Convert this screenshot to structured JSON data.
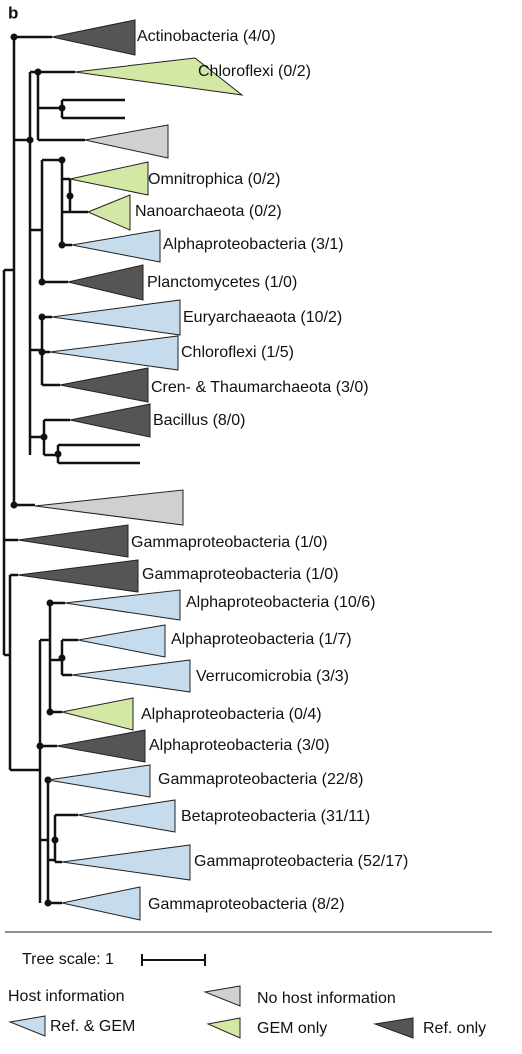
{
  "panel_label": "b",
  "clades": [
    "Actinobacteria (4/0)",
    "Chloroflexi (0/2)",
    "Omnitrophica (0/2)",
    "Nanoarchaeota (0/2)",
    "Alphaproteobacteria (3/1)",
    "Planctomycetes (1/0)",
    "Euryarchaeaota (10/2)",
    "Chloroflexi (1/5)",
    "Cren- & Thaumarchaeota (3/0)",
    "Bacillus (8/0)",
    "Gammaproteobacteria (1/0)",
    "Gammaproteobacteria (1/0)",
    "Alphaproteobacteria (10/6)",
    "Alphaproteobacteria (1/7)",
    "Verrucomicrobia (3/3)",
    "Alphaproteobacteria (0/4)",
    "Alphaproteobacteria (3/0)",
    "Gammaproteobacteria (22/8)",
    "Betaproteobacteria (31/11)",
    "Gammaproteobacteria (52/17)",
    "Gammaproteobacteria (8/2)"
  ],
  "tree_scale": "Tree scale: 1",
  "legend": {
    "title": "Host information",
    "items": [
      "No host information",
      "Ref. & GEM",
      "GEM only",
      "Ref. only"
    ]
  }
}
